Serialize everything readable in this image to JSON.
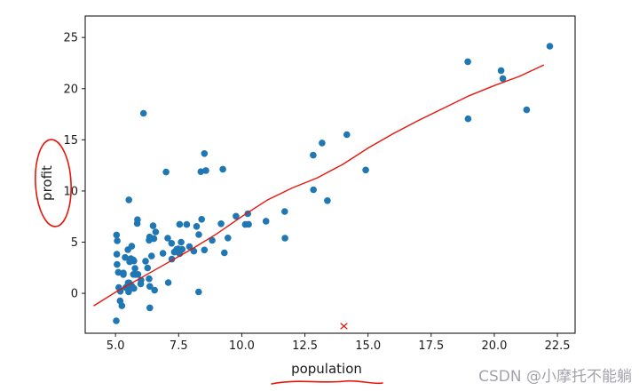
{
  "watermark": {
    "text": "CSDN @小摩托不能躺",
    "color": "#a3a3ab"
  },
  "chart_data": {
    "type": "scatter",
    "title": "",
    "xlabel": "population",
    "ylabel": "profit",
    "xlim": [
      3.8,
      23.2
    ],
    "ylim": [
      -3.9,
      27.1
    ],
    "xticks": [
      "5.0",
      "7.5",
      "10.0",
      "12.5",
      "15.0",
      "17.5",
      "20.0",
      "22.5"
    ],
    "yticks": [
      "0",
      "5",
      "10",
      "15",
      "20",
      "25"
    ],
    "grid": false,
    "legend": "none",
    "point_color": "#1f77b4",
    "line_color": "#e8150b",
    "annotation_color": "#e8150b",
    "points": [
      [
        6.11,
        17.59
      ],
      [
        5.53,
        9.13
      ],
      [
        8.52,
        13.66
      ],
      [
        7.0,
        11.85
      ],
      [
        5.86,
        6.82
      ],
      [
        8.38,
        11.89
      ],
      [
        7.48,
        4.35
      ],
      [
        8.58,
        12.0
      ],
      [
        6.49,
        6.6
      ],
      [
        5.05,
        3.82
      ],
      [
        5.71,
        3.25
      ],
      [
        14.16,
        15.51
      ],
      [
        5.73,
        3.16
      ],
      [
        8.41,
        7.23
      ],
      [
        5.64,
        0.72
      ],
      [
        5.38,
        3.51
      ],
      [
        6.37,
        5.3
      ],
      [
        5.13,
        0.56
      ],
      [
        6.43,
        3.65
      ],
      [
        7.07,
        5.39
      ],
      [
        6.19,
        3.14
      ],
      [
        20.27,
        21.77
      ],
      [
        5.49,
        4.26
      ],
      [
        6.33,
        5.19
      ],
      [
        5.56,
        3.08
      ],
      [
        18.95,
        22.64
      ],
      [
        12.83,
        13.5
      ],
      [
        10.96,
        7.05
      ],
      [
        13.18,
        14.69
      ],
      [
        22.2,
        24.15
      ],
      [
        5.25,
        -1.22
      ],
      [
        6.59,
        6.0
      ],
      [
        9.25,
        12.13
      ],
      [
        5.89,
        1.85
      ],
      [
        8.21,
        6.54
      ],
      [
        7.93,
        4.56
      ],
      [
        8.1,
        4.12
      ],
      [
        5.61,
        3.39
      ],
      [
        12.84,
        10.12
      ],
      [
        6.35,
        5.5
      ],
      [
        5.41,
        0.56
      ],
      [
        6.88,
        3.91
      ],
      [
        11.71,
        5.39
      ],
      [
        5.77,
        2.44
      ],
      [
        7.82,
        6.73
      ],
      [
        7.09,
        1.05
      ],
      [
        5.07,
        5.13
      ],
      [
        5.8,
        1.84
      ],
      [
        11.7,
        8.0
      ],
      [
        5.54,
        1.02
      ],
      [
        7.54,
        6.75
      ],
      [
        5.31,
        1.84
      ],
      [
        7.42,
        4.29
      ],
      [
        7.6,
        5.0
      ],
      [
        6.33,
        1.42
      ],
      [
        6.36,
        -1.42
      ],
      [
        6.27,
        2.48
      ],
      [
        5.64,
        4.6
      ],
      [
        9.31,
        3.96
      ],
      [
        9.45,
        5.41
      ],
      [
        8.83,
        5.17
      ],
      [
        5.18,
        -0.74
      ],
      [
        21.28,
        17.93
      ],
      [
        14.91,
        12.05
      ],
      [
        18.96,
        17.05
      ],
      [
        7.22,
        4.89
      ],
      [
        8.3,
        5.74
      ],
      [
        10.24,
        7.78
      ],
      [
        5.5,
        1.02
      ],
      [
        20.34,
        20.99
      ],
      [
        10.14,
        6.73
      ],
      [
        7.33,
        4.03
      ],
      [
        6.01,
        1.28
      ],
      [
        7.23,
        3.34
      ],
      [
        5.03,
        -2.68
      ],
      [
        6.55,
        0.3
      ],
      [
        7.54,
        3.88
      ],
      [
        5.04,
        5.7
      ],
      [
        10.27,
        6.75
      ],
      [
        5.11,
        2.06
      ],
      [
        5.73,
        0.48
      ],
      [
        5.19,
        0.2
      ],
      [
        6.36,
        0.68
      ],
      [
        9.77,
        7.54
      ],
      [
        6.52,
        5.34
      ],
      [
        8.52,
        4.24
      ],
      [
        9.18,
        6.8
      ],
      [
        6.0,
        0.93
      ],
      [
        5.52,
        0.15
      ],
      [
        5.06,
        2.82
      ],
      [
        5.71,
        1.85
      ],
      [
        7.64,
        4.3
      ],
      [
        5.87,
        7.2
      ],
      [
        5.31,
        1.99
      ],
      [
        8.29,
        0.14
      ],
      [
        13.39,
        9.06
      ],
      [
        5.44,
        0.62
      ]
    ],
    "fit_line": [
      [
        4.15,
        -1.2
      ],
      [
        5.0,
        0.1
      ],
      [
        6.0,
        1.5
      ],
      [
        7.0,
        2.9
      ],
      [
        8.0,
        4.3
      ],
      [
        9.0,
        5.8
      ],
      [
        10.0,
        7.5
      ],
      [
        11.0,
        9.1
      ],
      [
        12.0,
        10.3
      ],
      [
        13.0,
        11.3
      ],
      [
        14.0,
        12.6
      ],
      [
        15.0,
        14.2
      ],
      [
        16.0,
        15.6
      ],
      [
        17.0,
        16.9
      ],
      [
        18.0,
        18.1
      ],
      [
        19.0,
        19.3
      ],
      [
        20.0,
        20.3
      ],
      [
        21.0,
        21.2
      ],
      [
        21.95,
        22.3
      ]
    ],
    "annotations": [
      {
        "name": "circle-around-ylabel",
        "description": "hand-drawn red ellipse circling the y-axis label 'profit'"
      },
      {
        "name": "underline-under-xlabel",
        "description": "hand-drawn red underline beneath the x-axis label 'population'"
      },
      {
        "name": "small-x-mark",
        "description": "tiny red x mark near the bottom of the plot around x=13.8"
      }
    ]
  }
}
